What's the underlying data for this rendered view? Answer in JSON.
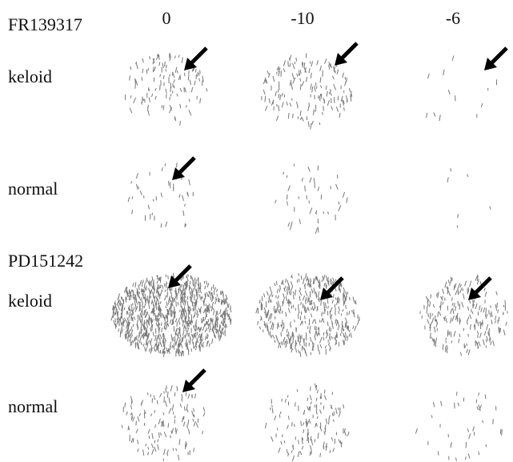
{
  "groups": [
    {
      "label": "FR139317",
      "rows": [
        {
          "label": "keloid"
        },
        {
          "label": "normal"
        }
      ]
    },
    {
      "label": "PD151242",
      "rows": [
        {
          "label": "keloid"
        },
        {
          "label": "normal"
        }
      ]
    }
  ],
  "columns": [
    "0",
    "-10",
    "-6"
  ]
}
